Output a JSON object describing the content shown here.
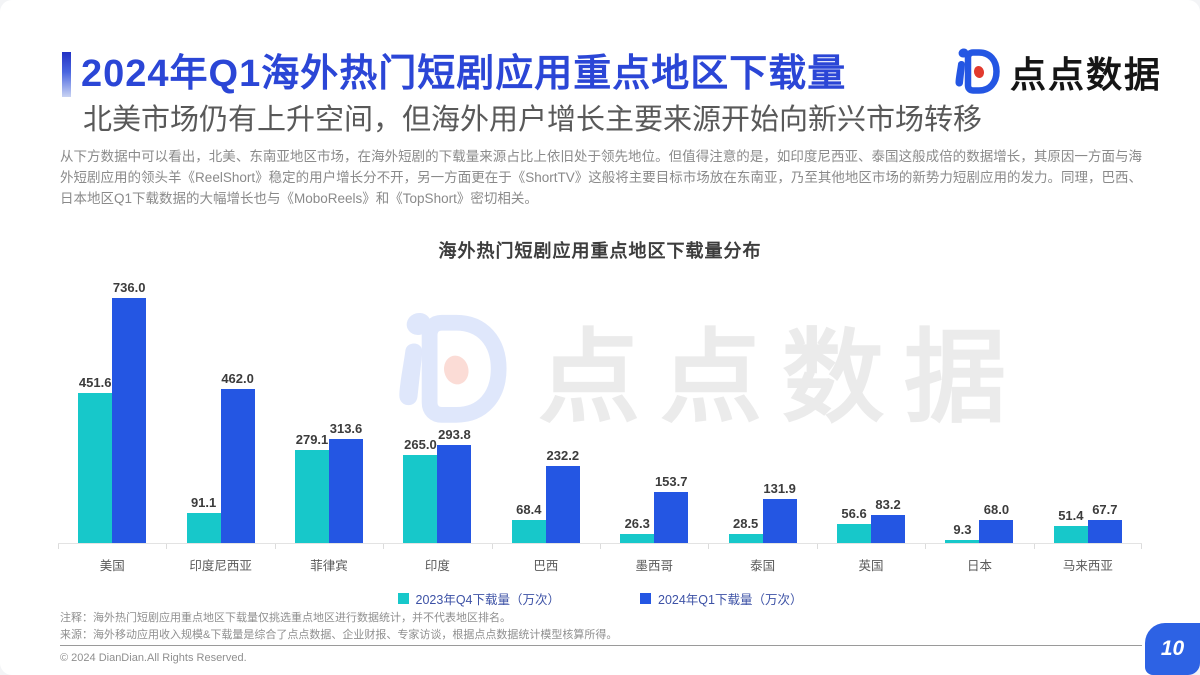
{
  "page": {
    "title": "2024年Q1海外热门短剧应用重点地区下载量",
    "subtitle": "北美市场仍有上升空间，但海外用户增长主要来源开始向新兴市场转移",
    "body_text": "从下方数据中可以看出，北美、东南亚地区市场，在海外短剧的下载量来源占比上依旧处于领先地位。但值得注意的是，如印度尼西亚、泰国这般成倍的数据增长，其原因一方面与海外短剧应用的领头羊《ReelShort》稳定的用户增长分不开，另一方面更在于《ShortTV》这般将主要目标市场放在东南亚，乃至其他地区市场的新势力短剧应用的发力。同理，巴西、日本地区Q1下载数据的大幅增长也与《MoboReels》和《TopShort》密切相关。",
    "page_number": "10"
  },
  "brand": {
    "logo_text": "点点数据",
    "watermark_text": "点点数据"
  },
  "footer": {
    "note1": "注释：海外热门短剧应用重点地区下载量仅挑选重点地区进行数据统计，并不代表地区排名。",
    "note2": "来源：海外移动应用收入规模&下载量是综合了点点数据、企业财报、专家访谈，根据点点数据统计模型核算所得。",
    "copyright": "© 2024 DianDian.All Rights Reserved."
  },
  "colors": {
    "title_blue": "#2b46d6",
    "series_q4_teal": "#17C8CA",
    "series_q1_blue": "#2456E3",
    "badge_blue": "#2d62e4",
    "logo_red_dot": "#e23a2e"
  },
  "chart_data": {
    "type": "bar",
    "title": "海外热门短剧应用重点地区下载量分布",
    "categories": [
      "美国",
      "印度尼西亚",
      "菲律宾",
      "印度",
      "巴西",
      "墨西哥",
      "泰国",
      "英国",
      "日本",
      "马来西亚"
    ],
    "series": [
      {
        "name": "2023年Q4下载量（万次）",
        "key": "2023-q4",
        "color": "#17C8CA",
        "values": [
          451.6,
          91.1,
          279.1,
          265.0,
          68.4,
          26.3,
          28.5,
          56.6,
          9.3,
          51.4
        ]
      },
      {
        "name": "2024年Q1下载量（万次）",
        "key": "2024-q1",
        "color": "#2456E3",
        "values": [
          736.0,
          462.0,
          313.6,
          293.8,
          232.2,
          153.7,
          131.9,
          83.2,
          68.0,
          67.7
        ]
      }
    ],
    "xlabel": "",
    "ylabel": "下载量（万次）",
    "ylim": [
      0,
      820
    ],
    "grid": false,
    "value_labels": true,
    "legend_position": "bottom"
  }
}
